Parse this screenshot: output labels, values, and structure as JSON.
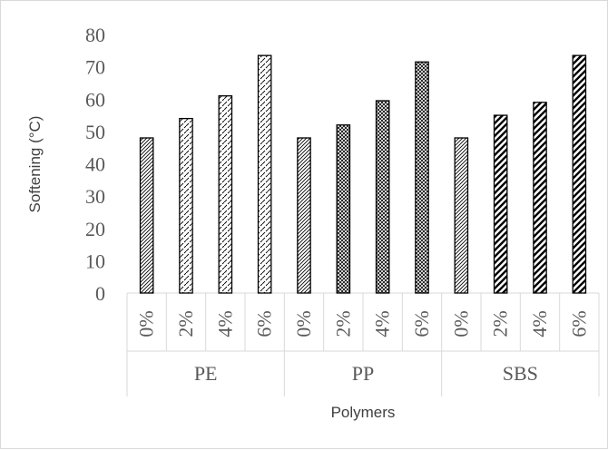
{
  "chart_data": {
    "type": "bar",
    "ylabel": "Softening (°C)",
    "xlabel": "Polymers",
    "ylim": [
      0,
      80
    ],
    "y_ticks": [
      0,
      10,
      20,
      30,
      40,
      50,
      60,
      70,
      80
    ],
    "grid": false,
    "legend": "none",
    "groups": [
      {
        "name": "PE",
        "categories": [
          "0%",
          "2%",
          "4%",
          "6%"
        ],
        "values": [
          48,
          54,
          61,
          73.5
        ]
      },
      {
        "name": "PP",
        "categories": [
          "0%",
          "2%",
          "4%",
          "6%"
        ],
        "values": [
          48,
          52,
          59.5,
          71.5
        ]
      },
      {
        "name": "SBS",
        "categories": [
          "0%",
          "2%",
          "4%",
          "6%"
        ],
        "values": [
          48,
          55,
          59,
          73.5
        ]
      }
    ]
  },
  "patterns": [
    "diag-dense",
    "diag-dash",
    "crosshatch",
    "diag-bold"
  ]
}
